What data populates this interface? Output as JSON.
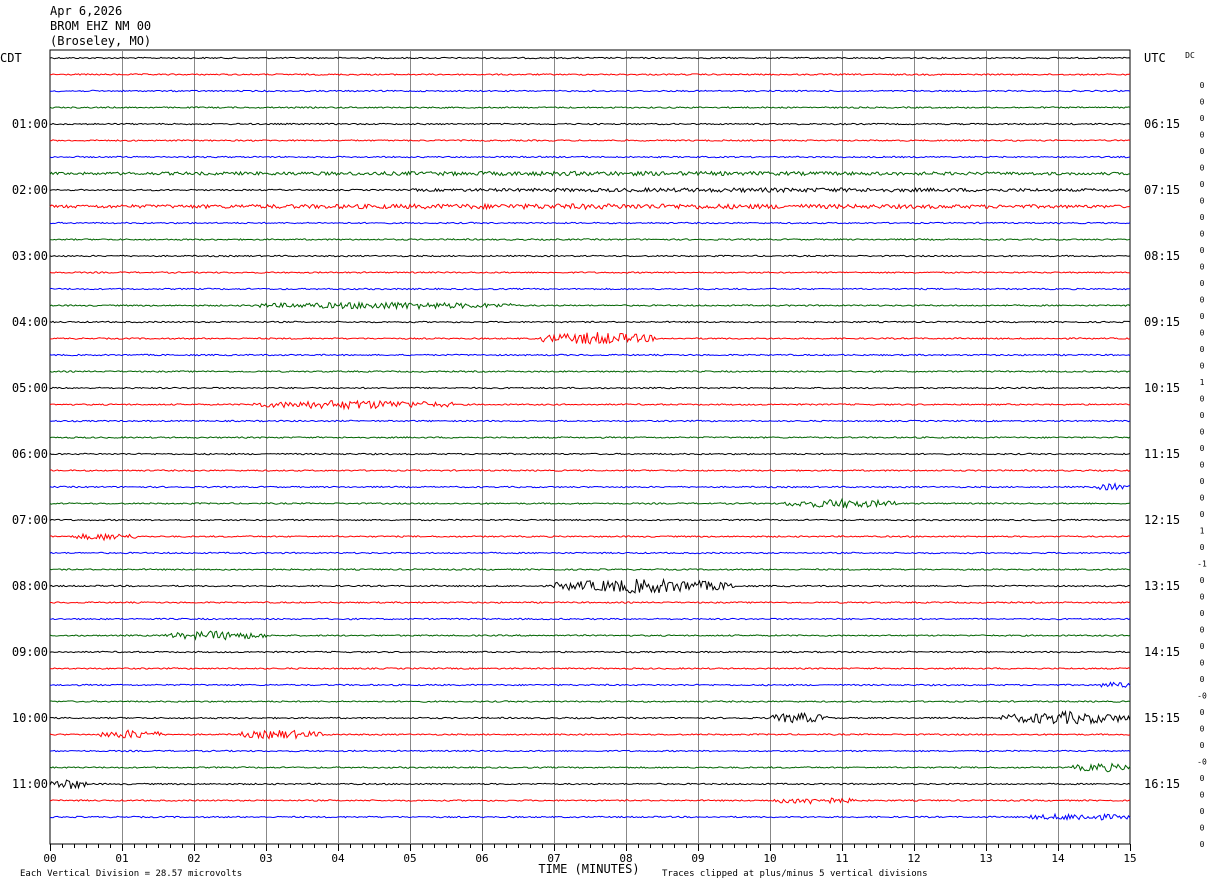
{
  "header": {
    "date": "Apr 6,2026",
    "station": "BROM EHZ NM 00",
    "location": "(Broseley, MO)"
  },
  "chart_data": {
    "type": "seismogram",
    "left_axis_label": "CDT",
    "right_axis_label": "UTC",
    "dc_label": "DC",
    "xlabel": "TIME (MINUTES)",
    "x_ticks": [
      "00",
      "01",
      "02",
      "03",
      "04",
      "05",
      "06",
      "07",
      "08",
      "09",
      "10",
      "11",
      "12",
      "13",
      "14",
      "15"
    ],
    "xlim": [
      0,
      15
    ],
    "rows_per_hour": 4,
    "trace_colors": [
      "#000000",
      "#ff0000",
      "#0000ff",
      "#006400"
    ],
    "left_hour_labels": [
      {
        "row": 4,
        "label": "01:00"
      },
      {
        "row": 8,
        "label": "02:00"
      },
      {
        "row": 12,
        "label": "03:00"
      },
      {
        "row": 16,
        "label": "04:00"
      },
      {
        "row": 20,
        "label": "05:00"
      },
      {
        "row": 24,
        "label": "06:00"
      },
      {
        "row": 28,
        "label": "07:00"
      },
      {
        "row": 32,
        "label": "08:00"
      },
      {
        "row": 36,
        "label": "09:00"
      },
      {
        "row": 40,
        "label": "10:00"
      },
      {
        "row": 44,
        "label": "11:00"
      }
    ],
    "right_hour_labels": [
      {
        "row": 0,
        "label": "UTC"
      },
      {
        "row": 4,
        "label": "06:15"
      },
      {
        "row": 8,
        "label": "07:15"
      },
      {
        "row": 12,
        "label": "08:15"
      },
      {
        "row": 16,
        "label": "09:15"
      },
      {
        "row": 20,
        "label": "10:15"
      },
      {
        "row": 24,
        "label": "11:15"
      },
      {
        "row": 28,
        "label": "12:15"
      },
      {
        "row": 32,
        "label": "13:15"
      },
      {
        "row": 36,
        "label": "14:15"
      },
      {
        "row": 40,
        "label": "15:15"
      },
      {
        "row": 44,
        "label": "16:15"
      }
    ],
    "dc_offsets": [
      "0",
      "0",
      "0",
      "0",
      "0",
      "0",
      "0",
      "0",
      "0",
      "0",
      "0",
      "0",
      "0",
      "0",
      "0",
      "0",
      "0",
      "0",
      "1",
      "0",
      "0",
      "0",
      "0",
      "0",
      "0",
      "0",
      "0",
      "1",
      "0",
      "-1",
      "0",
      "0",
      "0",
      "0",
      "0",
      "0",
      "0",
      "-0",
      "0",
      "0",
      "0",
      "-0",
      "0",
      "0",
      "0",
      "0",
      "0"
    ],
    "events": [
      {
        "row": 17,
        "start": 6.8,
        "end": 8.4,
        "amp": 6
      },
      {
        "row": 21,
        "start": 2.8,
        "end": 5.6,
        "amp": 4
      },
      {
        "row": 15,
        "start": 2.8,
        "end": 6.5,
        "amp": 3
      },
      {
        "row": 27,
        "start": 10.2,
        "end": 11.8,
        "amp": 4
      },
      {
        "row": 32,
        "start": 7.0,
        "end": 9.5,
        "amp": 7
      },
      {
        "row": 35,
        "start": 1.6,
        "end": 3.0,
        "amp": 4
      },
      {
        "row": 40,
        "start": 10.0,
        "end": 10.8,
        "amp": 5
      },
      {
        "row": 40,
        "start": 13.2,
        "end": 15.0,
        "amp": 6
      },
      {
        "row": 41,
        "start": 0.7,
        "end": 1.6,
        "amp": 4
      },
      {
        "row": 41,
        "start": 2.6,
        "end": 3.8,
        "amp": 4
      },
      {
        "row": 29,
        "start": 0.3,
        "end": 1.2,
        "amp": 3
      },
      {
        "row": 45,
        "start": 10.0,
        "end": 11.2,
        "amp": 3
      },
      {
        "row": 46,
        "start": 13.6,
        "end": 15.0,
        "amp": 3
      },
      {
        "row": 43,
        "start": 14.2,
        "end": 15.0,
        "amp": 4
      },
      {
        "row": 38,
        "start": 14.6,
        "end": 15.0,
        "amp": 3
      },
      {
        "row": 26,
        "start": 14.5,
        "end": 15.0,
        "amp": 3
      },
      {
        "row": 44,
        "start": 0.0,
        "end": 0.5,
        "amp": 5
      },
      {
        "row": 7,
        "start": 0.0,
        "end": 15.0,
        "amp": 1.5
      },
      {
        "row": 9,
        "start": 0.0,
        "end": 15.0,
        "amp": 2
      },
      {
        "row": 8,
        "start": 5.0,
        "end": 15.0,
        "amp": 1.5
      }
    ]
  },
  "footer": {
    "vertical_division": "Each Vertical Division =   28.57 microvolts",
    "clip_note": "Traces clipped at plus/minus 5 vertical divisions"
  }
}
